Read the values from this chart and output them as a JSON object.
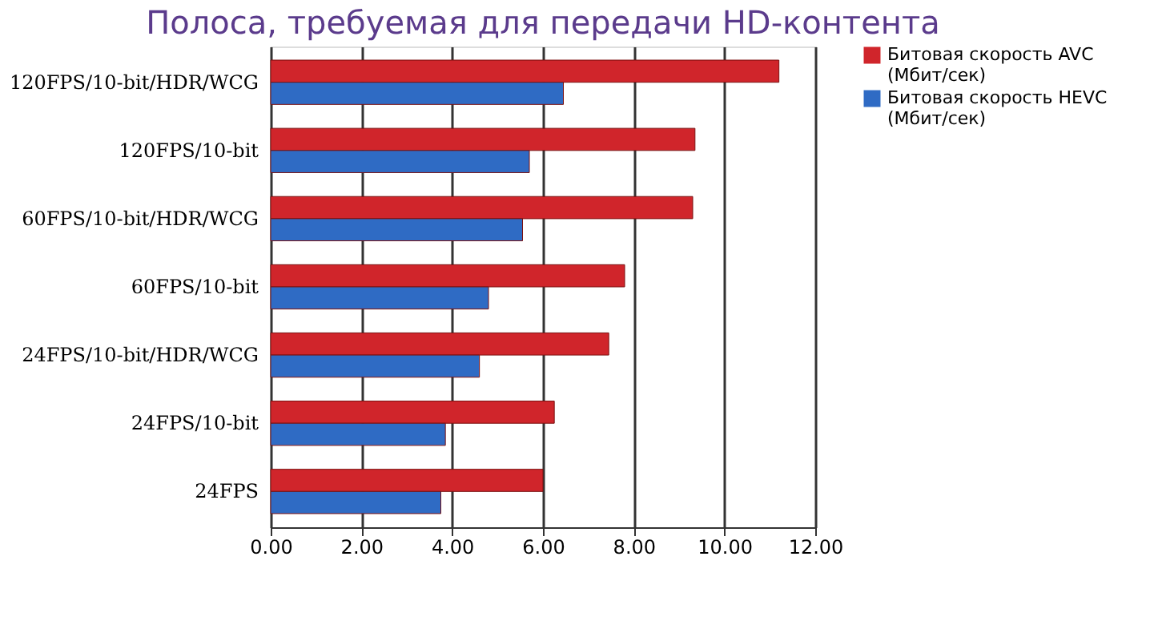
{
  "chart_data": {
    "type": "bar",
    "orientation": "horizontal",
    "title": "Полоса, требуемая для передачи HD-контента",
    "categories": [
      "120FPS/10-bit/HDR/WCG",
      "120FPS/10-bit",
      "60FPS/10-bit/HDR/WCG",
      "60FPS/10-bit",
      "24FPS/10-bit/HDR/WCG",
      "24FPS/10-bit",
      "24FPS"
    ],
    "series": [
      {
        "name": "Битовая скорость AVC (Мбит/сек)",
        "color": "#d0252b",
        "values": [
          11.2,
          9.35,
          9.3,
          7.8,
          7.45,
          6.25,
          6.0
        ]
      },
      {
        "name": "Битовая скорость HEVC (Мбит/сек)",
        "color": "#2f6bc4",
        "values": [
          6.45,
          5.7,
          5.55,
          4.8,
          4.6,
          3.85,
          3.75
        ]
      }
    ],
    "xlim": [
      0,
      12
    ],
    "xticks": [
      {
        "value": 0,
        "label": "0.00"
      },
      {
        "value": 2,
        "label": "2.00"
      },
      {
        "value": 4,
        "label": "4.00"
      },
      {
        "value": 6,
        "label": "6.00"
      },
      {
        "value": 8,
        "label": "8.00"
      },
      {
        "value": 10,
        "label": "10.00"
      },
      {
        "value": 12,
        "label": "12.00"
      }
    ],
    "grid": "x",
    "legend": "right"
  }
}
